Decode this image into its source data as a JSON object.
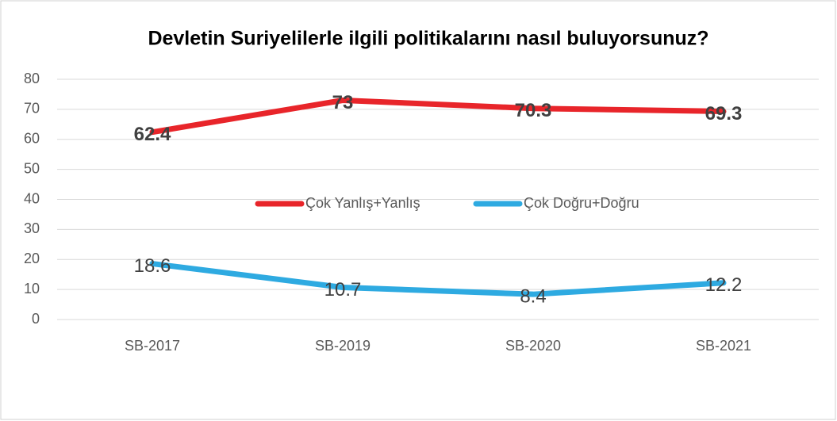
{
  "chart_data": {
    "type": "line",
    "title": "Devletin Suriyelilerle ilgili politikalarını nasıl buluyorsunuz?",
    "categories": [
      "SB-2017",
      "SB-2019",
      "SB-2020",
      "SB-2021"
    ],
    "series": [
      {
        "name": "Çok Yanlış+Yanlış",
        "color": "#e8252a",
        "values": [
          62.4,
          73,
          70.3,
          69.3
        ]
      },
      {
        "name": "Çok Doğru+Doğru",
        "color": "#2eaae1",
        "values": [
          18.6,
          10.7,
          8.4,
          12.2
        ]
      }
    ],
    "ylim": [
      0,
      80
    ],
    "yticks": [
      0,
      10,
      20,
      30,
      40,
      50,
      60,
      70,
      80
    ],
    "grid": true,
    "legend": "center"
  }
}
